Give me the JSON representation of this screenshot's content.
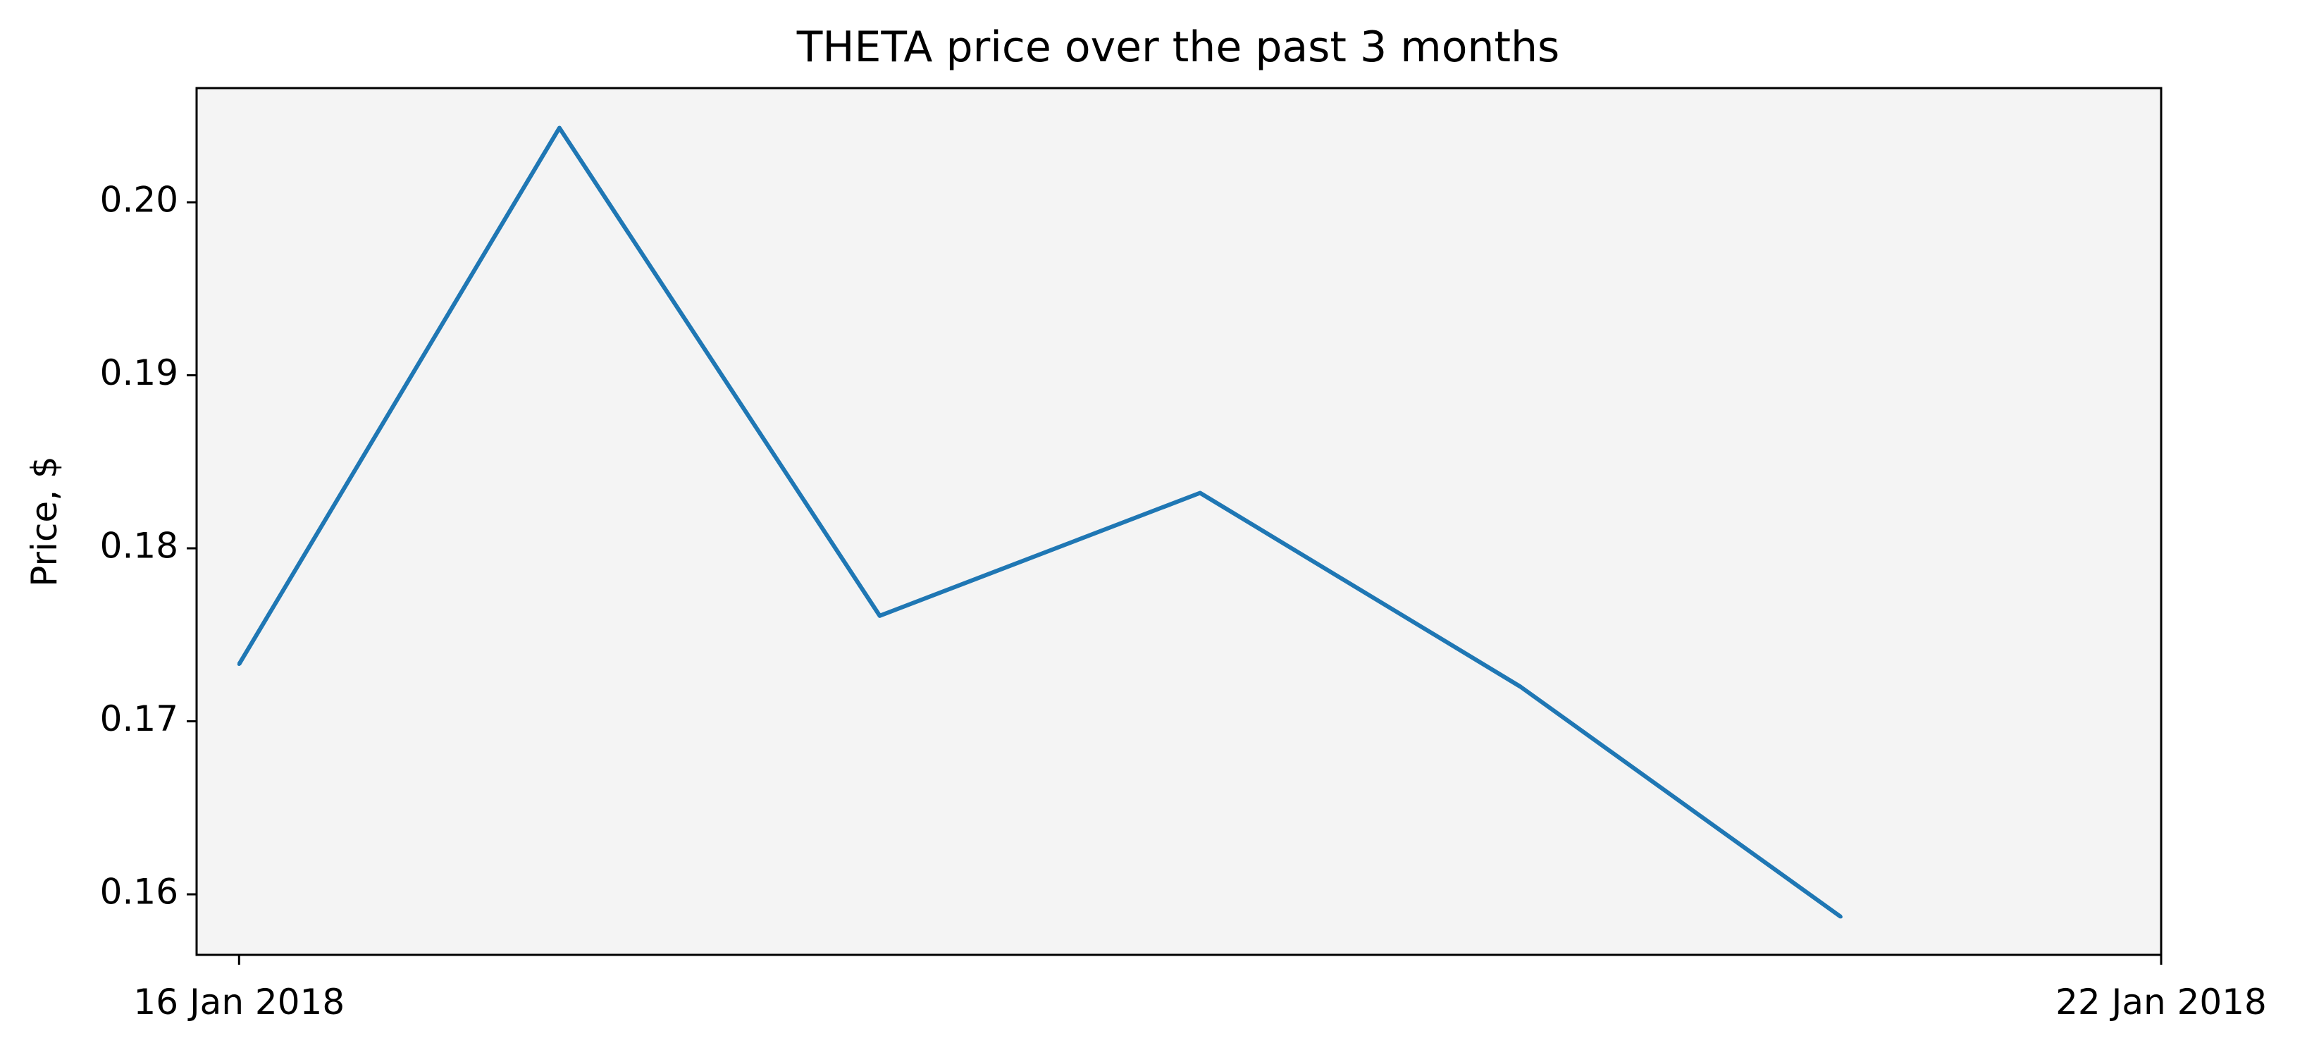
{
  "chart_data": {
    "type": "line",
    "title": "THETA price over the past 3 months",
    "xlabel": "",
    "ylabel": "Price, $",
    "x": [
      "16 Jan 2018",
      "17 Jan 2018",
      "18 Jan 2018",
      "19 Jan 2018",
      "20 Jan 2018",
      "21 Jan 2018"
    ],
    "series": [
      {
        "values": [
          0.1733,
          0.2043,
          0.1761,
          0.1832,
          0.172,
          0.1587
        ]
      }
    ],
    "xlim": [
      "15 Jan 2018 20:49",
      "22 Jan 2018"
    ],
    "ylim": [
      0.1565,
      0.2066
    ],
    "xticks": [
      "16 Jan 2018",
      "22 Jan 2018"
    ],
    "yticks": [
      "0.16",
      "0.17",
      "0.18",
      "0.19",
      "0.20"
    ],
    "grid": false,
    "line_color": "#1f77b4",
    "plot_background": "#f4f4f4"
  }
}
